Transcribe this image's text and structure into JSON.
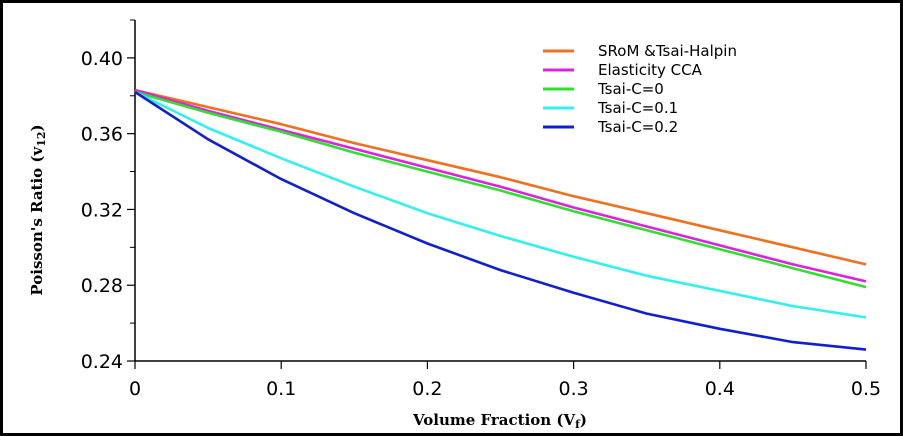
{
  "chart_data": {
    "type": "line",
    "title": "",
    "xlabel": "Volume Fraction (V",
    "xlabel_sub": "f",
    "xlabel_close": ")",
    "ylabel": "Poisson's Ratio (v",
    "ylabel_sub": "12",
    "ylabel_close": ")",
    "xlim": [
      0,
      0.5
    ],
    "ylim": [
      0.24,
      0.42
    ],
    "x_ticks": [
      0,
      0.1,
      0.2,
      0.3,
      0.4,
      0.5
    ],
    "x_tick_labels": [
      "0",
      "0.1",
      "0.2",
      "0.3",
      "0.4",
      "0.5"
    ],
    "y_ticks": [
      0.24,
      0.28,
      0.32,
      0.36,
      0.4
    ],
    "y_tick_labels": [
      "0.24",
      "0.28",
      "0.32",
      "0.36",
      "0.40"
    ],
    "y_minor_ticks": [
      0.26,
      0.3,
      0.34,
      0.38,
      0.42
    ],
    "grid": false,
    "legend_position": "top-right",
    "x": [
      0,
      0.05,
      0.1,
      0.15,
      0.2,
      0.25,
      0.3,
      0.35,
      0.4,
      0.45,
      0.5
    ],
    "series": [
      {
        "name": "SRoM  &Tsai-Halpin",
        "color": "#F07020",
        "values": [
          0.383,
          0.374,
          0.365,
          0.355,
          0.346,
          0.337,
          0.327,
          0.318,
          0.309,
          0.3,
          0.291
        ]
      },
      {
        "name": "Elasticity CCA",
        "color": "#E020E0",
        "values": [
          0.383,
          0.372,
          0.362,
          0.352,
          0.342,
          0.332,
          0.321,
          0.311,
          0.301,
          0.291,
          0.282
        ]
      },
      {
        "name": "Tsai-C=0",
        "color": "#30E030",
        "values": [
          0.382,
          0.371,
          0.361,
          0.35,
          0.34,
          0.33,
          0.319,
          0.309,
          0.299,
          0.289,
          0.279
        ]
      },
      {
        "name": "Tsai-C=0.1",
        "color": "#30F0F0",
        "values": [
          0.382,
          0.363,
          0.347,
          0.332,
          0.318,
          0.306,
          0.295,
          0.285,
          0.277,
          0.269,
          0.263
        ]
      },
      {
        "name": "Tsai-C=0.2",
        "color": "#1020D0",
        "values": [
          0.382,
          0.357,
          0.336,
          0.318,
          0.302,
          0.288,
          0.276,
          0.265,
          0.257,
          0.25,
          0.246
        ]
      }
    ]
  }
}
